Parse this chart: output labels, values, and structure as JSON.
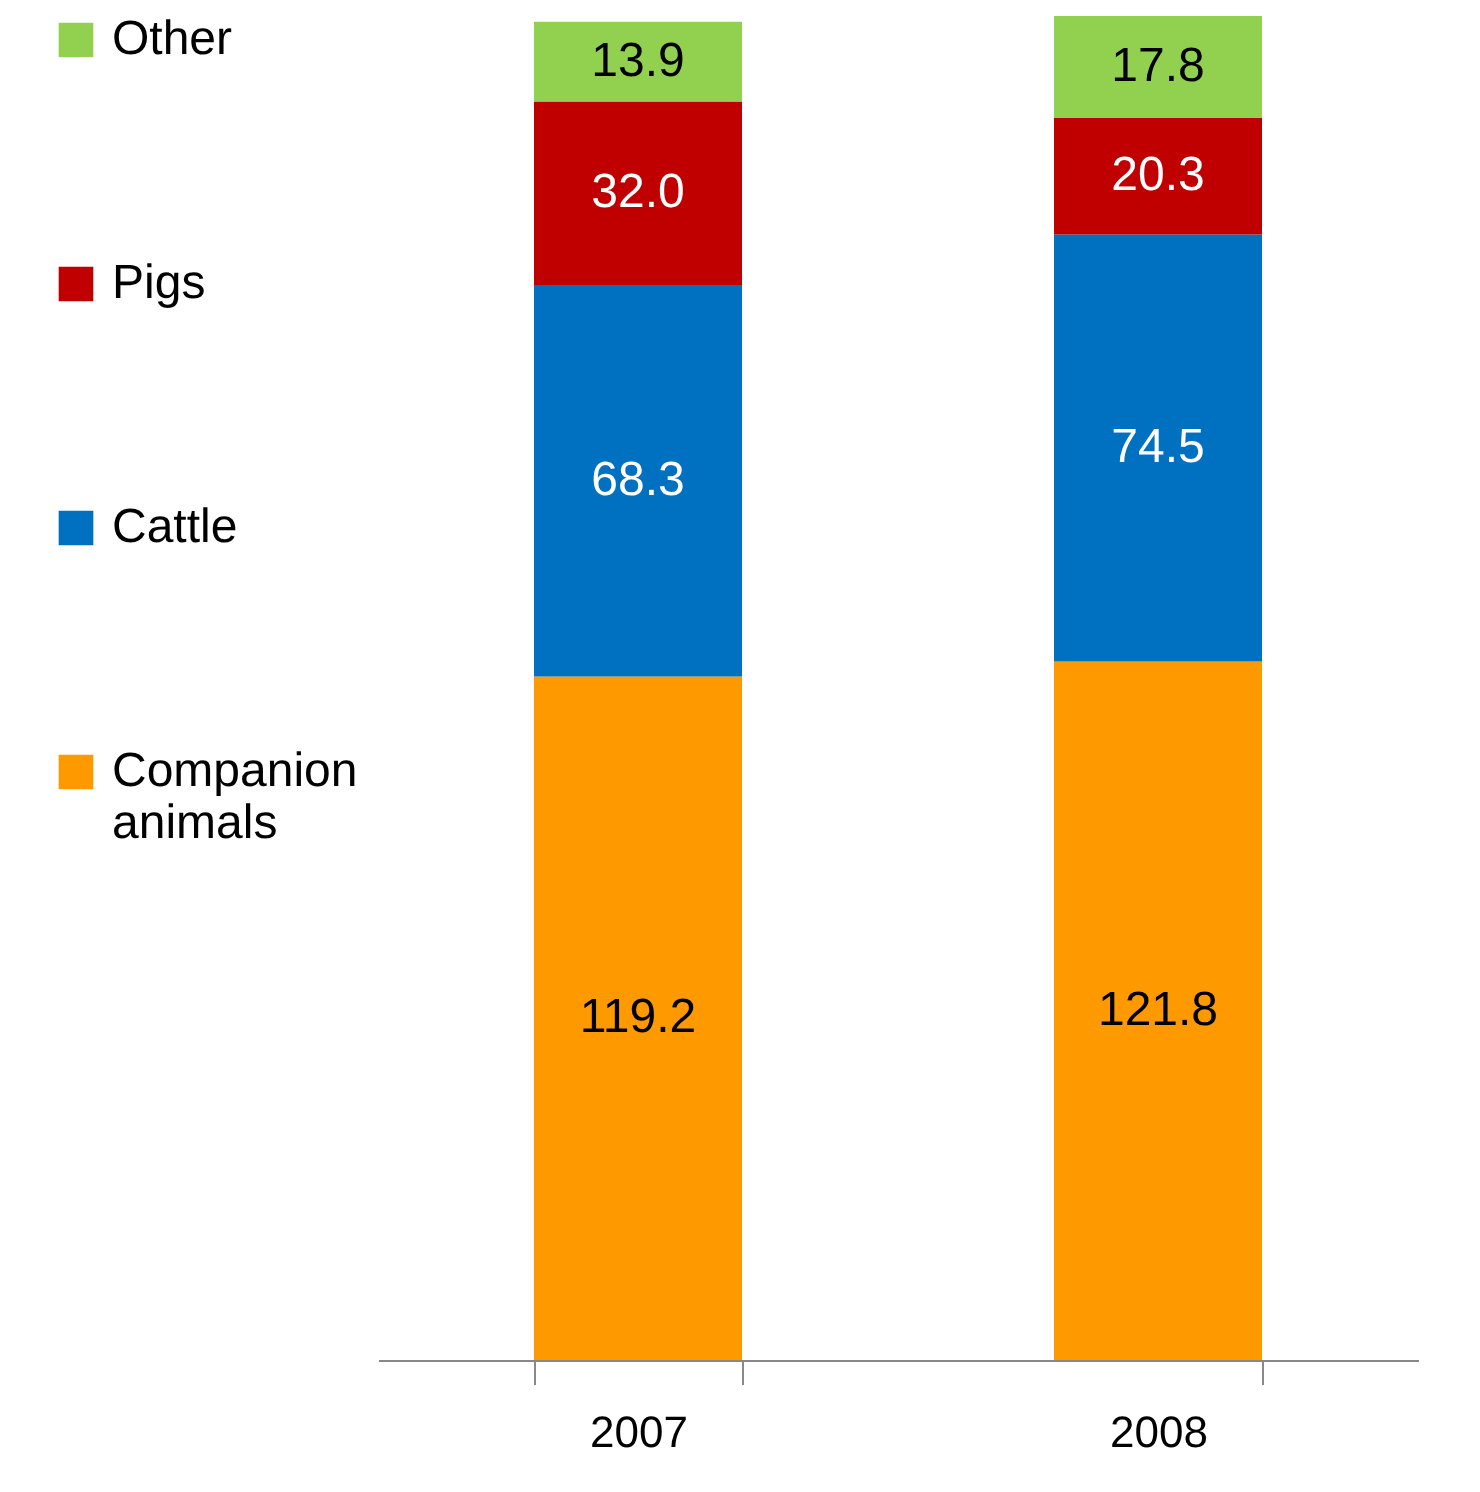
{
  "chart_data": {
    "type": "bar",
    "stacked": true,
    "legend": "left",
    "grid": false,
    "categories": [
      "2007",
      "2008"
    ],
    "series": [
      {
        "name": "Companion animals",
        "color": "#ff9900",
        "values": [
          119.2,
          121.8
        ],
        "value_labels": [
          "119.2",
          "121.8"
        ]
      },
      {
        "name": "Cattle",
        "color": "#0070c0",
        "values": [
          68.3,
          74.5
        ],
        "value_labels": [
          "68.3",
          "74.5"
        ]
      },
      {
        "name": "Pigs",
        "color": "#c00000",
        "values": [
          32.0,
          20.3
        ],
        "value_labels": [
          "32.0",
          "20.3"
        ]
      },
      {
        "name": "Other",
        "color": "#92d050",
        "values": [
          13.9,
          17.8
        ],
        "value_labels": [
          "13.9",
          "17.8"
        ]
      }
    ]
  }
}
